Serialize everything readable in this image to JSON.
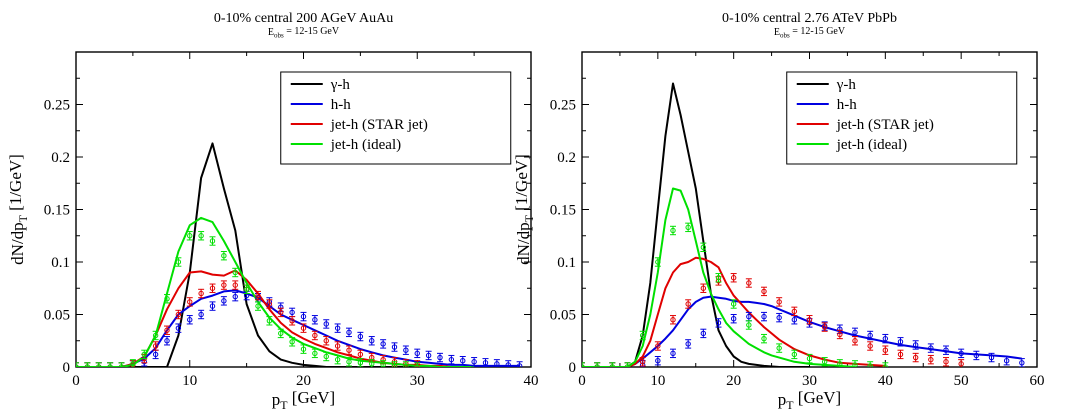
{
  "chart_data": [
    {
      "type": "line",
      "title": "0-10% central 200 AGeV AuAu",
      "subtitle": "E_obs = 12-15 GeV",
      "xlabel": "p_T [GeV]",
      "ylabel": "dN/dp_T [1/GeV]",
      "xlim": [
        0,
        40
      ],
      "ylim": [
        0,
        0.3
      ],
      "xticks": [
        0,
        10,
        20,
        30,
        40
      ],
      "yticks": [
        0,
        0.05,
        0.1,
        0.15,
        0.2,
        0.25
      ],
      "yticklabels": [
        "0",
        "0.05",
        "0.1",
        "0.15",
        "0.2",
        "0.25"
      ],
      "grid": false,
      "legend_position": "top-right",
      "series": [
        {
          "name": "γ-h",
          "color": "#000000",
          "style": "line",
          "x": [
            0,
            1,
            2,
            3,
            4,
            5,
            6,
            7,
            8,
            9,
            10,
            11,
            12,
            13,
            14,
            15,
            16,
            17,
            18,
            19,
            20,
            21,
            22,
            23,
            24,
            25,
            26,
            27,
            28,
            29,
            30
          ],
          "y": [
            0,
            0,
            0,
            0,
            0,
            0,
            0,
            0,
            0,
            0.03,
            0.09,
            0.18,
            0.213,
            0.17,
            0.13,
            0.06,
            0.03,
            0.015,
            0.007,
            0.004,
            0.002,
            0.001,
            0,
            0,
            0,
            0,
            0,
            0,
            0,
            0,
            0
          ]
        },
        {
          "name": "h-h",
          "color": "#0000e0",
          "style": "line",
          "x": [
            0,
            1,
            2,
            3,
            4,
            5,
            6,
            7,
            8,
            9,
            10,
            11,
            12,
            13,
            14,
            15,
            16,
            17,
            18,
            19,
            20,
            21,
            22,
            23,
            24,
            25,
            26,
            27,
            28,
            29,
            30,
            31,
            32,
            33,
            34,
            35,
            36,
            37,
            38,
            39
          ],
          "y": [
            0,
            0,
            0,
            0,
            0,
            0.003,
            0.008,
            0.018,
            0.035,
            0.05,
            0.058,
            0.065,
            0.068,
            0.072,
            0.073,
            0.07,
            0.066,
            0.058,
            0.05,
            0.045,
            0.04,
            0.035,
            0.03,
            0.025,
            0.021,
            0.017,
            0.014,
            0.011,
            0.009,
            0.007,
            0.005,
            0.004,
            0.003,
            0.002,
            0.002,
            0.001,
            0.001,
            0.001,
            0.001,
            0.001
          ]
        },
        {
          "name": "jet-h (STAR jet)",
          "color": "#e00000",
          "style": "line",
          "x": [
            0,
            1,
            2,
            3,
            4,
            5,
            6,
            7,
            8,
            9,
            10,
            11,
            12,
            13,
            14,
            15,
            16,
            17,
            18,
            19,
            20,
            21,
            22,
            23,
            24,
            25,
            26,
            27,
            28,
            29,
            30,
            31,
            32,
            33,
            34,
            35
          ],
          "y": [
            0,
            0,
            0,
            0,
            0,
            0.003,
            0.01,
            0.03,
            0.055,
            0.075,
            0.09,
            0.091,
            0.088,
            0.087,
            0.092,
            0.083,
            0.07,
            0.055,
            0.042,
            0.033,
            0.027,
            0.022,
            0.018,
            0.014,
            0.011,
            0.008,
            0.006,
            0.004,
            0.003,
            0.002,
            0.002,
            0.001,
            0.001,
            0,
            0,
            0
          ]
        },
        {
          "name": "jet-h (ideal)",
          "color": "#00e000",
          "style": "line",
          "x": [
            0,
            1,
            2,
            3,
            4,
            5,
            6,
            7,
            8,
            9,
            10,
            11,
            12,
            13,
            14,
            15,
            16,
            17,
            18,
            19,
            20,
            21,
            22,
            23,
            24,
            25,
            26,
            27,
            28,
            29,
            30,
            31,
            32,
            33,
            34,
            35
          ],
          "y": [
            0,
            0,
            0,
            0,
            0,
            0.002,
            0.01,
            0.03,
            0.07,
            0.11,
            0.135,
            0.142,
            0.138,
            0.12,
            0.1,
            0.08,
            0.062,
            0.047,
            0.036,
            0.028,
            0.022,
            0.018,
            0.014,
            0.011,
            0.008,
            0.006,
            0.005,
            0.004,
            0.003,
            0.002,
            0.001,
            0.001,
            0,
            0,
            0,
            0
          ]
        },
        {
          "name": "h-h data",
          "color": "#0000e0",
          "style": "errorbar",
          "x": [
            0,
            1,
            2,
            3,
            4,
            5,
            6,
            7,
            8,
            9,
            10,
            11,
            12,
            13,
            14,
            15,
            16,
            17,
            18,
            19,
            20,
            21,
            22,
            23,
            24,
            25,
            26,
            27,
            28,
            29,
            30,
            31,
            32,
            33,
            34,
            35,
            36,
            37,
            38,
            39
          ],
          "y": [
            0,
            0,
            0,
            0,
            0,
            0.002,
            0.005,
            0.012,
            0.025,
            0.037,
            0.045,
            0.05,
            0.058,
            0.063,
            0.067,
            0.068,
            0.066,
            0.062,
            0.057,
            0.052,
            0.048,
            0.045,
            0.041,
            0.037,
            0.033,
            0.029,
            0.025,
            0.022,
            0.019,
            0.016,
            0.013,
            0.011,
            0.009,
            0.007,
            0.006,
            0.005,
            0.004,
            0.003,
            0.002,
            0.001
          ],
          "err": 0.004
        },
        {
          "name": "jet-h (STAR jet) data",
          "color": "#e00000",
          "style": "errorbar",
          "x": [
            0,
            1,
            2,
            3,
            4,
            5,
            6,
            7,
            8,
            9,
            10,
            11,
            12,
            13,
            14,
            15,
            16,
            17,
            18,
            19,
            20,
            21,
            22,
            23,
            24,
            25,
            26,
            27,
            28,
            29,
            30
          ],
          "y": [
            0,
            0,
            0,
            0,
            0,
            0.002,
            0.008,
            0.02,
            0.035,
            0.05,
            0.062,
            0.07,
            0.075,
            0.078,
            0.078,
            0.074,
            0.068,
            0.06,
            0.052,
            0.044,
            0.037,
            0.03,
            0.025,
            0.02,
            0.016,
            0.012,
            0.009,
            0.007,
            0.005,
            0.003,
            0.002
          ],
          "err": 0.004
        },
        {
          "name": "jet-h (ideal) data",
          "color": "#00e000",
          "style": "errorbar",
          "x": [
            0,
            1,
            2,
            3,
            4,
            5,
            6,
            7,
            8,
            9,
            10,
            11,
            12,
            13,
            14,
            15,
            16,
            17,
            18,
            19,
            20,
            21,
            22,
            23,
            24,
            25,
            26,
            27,
            28,
            29,
            30
          ],
          "y": [
            0,
            0,
            0,
            0,
            0,
            0.003,
            0.012,
            0.03,
            0.065,
            0.1,
            0.125,
            0.125,
            0.12,
            0.106,
            0.09,
            0.074,
            0.058,
            0.044,
            0.032,
            0.024,
            0.017,
            0.013,
            0.01,
            0.007,
            0.005,
            0.004,
            0.003,
            0.002,
            0.001,
            0.001,
            0
          ],
          "err": 0.004
        }
      ]
    },
    {
      "type": "line",
      "title": "0-10% central 2.76 ATeV PbPb",
      "subtitle": "E_obs = 12-15 GeV",
      "xlabel": "p_T [GeV]",
      "ylabel": "dN/dp_T [1/GeV]",
      "xlim": [
        0,
        60
      ],
      "ylim": [
        0,
        0.3
      ],
      "xticks": [
        0,
        10,
        20,
        30,
        40,
        50,
        60
      ],
      "yticks": [
        0,
        0.05,
        0.1,
        0.15,
        0.2,
        0.25
      ],
      "yticklabels": [
        "0",
        "0.05",
        "0.1",
        "0.15",
        "0.2",
        "0.25"
      ],
      "grid": false,
      "legend_position": "top-right",
      "series": [
        {
          "name": "γ-h",
          "color": "#000000",
          "style": "line",
          "x": [
            0,
            2,
            4,
            6,
            7,
            8,
            9,
            10,
            11,
            12,
            13,
            14,
            15,
            16,
            17,
            18,
            19,
            20,
            21,
            22,
            23,
            24,
            26,
            28,
            30
          ],
          "y": [
            0,
            0,
            0,
            0,
            0.005,
            0.03,
            0.08,
            0.15,
            0.22,
            0.27,
            0.24,
            0.205,
            0.17,
            0.12,
            0.07,
            0.035,
            0.02,
            0.01,
            0.005,
            0.003,
            0.002,
            0.001,
            0,
            0,
            0
          ]
        },
        {
          "name": "h-h",
          "color": "#0000e0",
          "style": "line",
          "x": [
            0,
            2,
            4,
            6,
            7,
            8,
            9,
            10,
            11,
            12,
            13,
            14,
            15,
            16,
            17,
            18,
            19,
            20,
            21,
            22,
            23,
            24,
            25,
            26,
            28,
            30,
            32,
            34,
            36,
            38,
            40,
            42,
            44,
            46,
            48,
            50,
            52,
            54,
            56,
            58
          ],
          "y": [
            0,
            0,
            0,
            0,
            0.003,
            0.008,
            0.014,
            0.02,
            0.027,
            0.035,
            0.045,
            0.055,
            0.062,
            0.066,
            0.067,
            0.066,
            0.065,
            0.063,
            0.062,
            0.062,
            0.061,
            0.06,
            0.058,
            0.055,
            0.049,
            0.043,
            0.038,
            0.034,
            0.03,
            0.027,
            0.024,
            0.021,
            0.019,
            0.017,
            0.015,
            0.013,
            0.012,
            0.011,
            0.01,
            0.008
          ]
        },
        {
          "name": "jet-h (STAR jet)",
          "color": "#e00000",
          "style": "line",
          "x": [
            0,
            2,
            4,
            6,
            7,
            8,
            9,
            10,
            11,
            12,
            13,
            14,
            15,
            16,
            17,
            18,
            19,
            20,
            21,
            22,
            23,
            24,
            25,
            26,
            28,
            30,
            32,
            34,
            36,
            38,
            40
          ],
          "y": [
            0,
            0,
            0,
            0,
            0.003,
            0.01,
            0.025,
            0.05,
            0.075,
            0.09,
            0.098,
            0.1,
            0.104,
            0.103,
            0.1,
            0.095,
            0.08,
            0.068,
            0.06,
            0.052,
            0.045,
            0.038,
            0.032,
            0.026,
            0.017,
            0.011,
            0.007,
            0.004,
            0.003,
            0.002,
            0.001
          ]
        },
        {
          "name": "jet-h (ideal)",
          "color": "#00e000",
          "style": "line",
          "x": [
            0,
            2,
            4,
            6,
            7,
            8,
            9,
            10,
            11,
            12,
            13,
            14,
            15,
            16,
            17,
            18,
            19,
            20,
            21,
            22,
            23,
            24,
            25,
            26,
            28,
            30,
            32,
            34,
            36
          ],
          "y": [
            0,
            0,
            0,
            0,
            0.005,
            0.02,
            0.05,
            0.09,
            0.14,
            0.17,
            0.168,
            0.15,
            0.12,
            0.09,
            0.07,
            0.055,
            0.042,
            0.034,
            0.028,
            0.022,
            0.018,
            0.014,
            0.011,
            0.009,
            0.005,
            0.003,
            0.002,
            0.001,
            0
          ]
        },
        {
          "name": "h-h data",
          "color": "#0000e0",
          "style": "errorbar",
          "x": [
            0,
            2,
            4,
            6,
            8,
            10,
            12,
            14,
            16,
            18,
            20,
            22,
            24,
            26,
            28,
            30,
            32,
            34,
            36,
            38,
            40,
            42,
            44,
            46,
            48,
            50,
            52,
            54,
            56,
            58
          ],
          "y": [
            0,
            0,
            0,
            0,
            0.002,
            0.006,
            0.013,
            0.022,
            0.032,
            0.042,
            0.046,
            0.048,
            0.048,
            0.047,
            0.045,
            0.042,
            0.039,
            0.036,
            0.033,
            0.03,
            0.027,
            0.024,
            0.021,
            0.018,
            0.016,
            0.013,
            0.011,
            0.009,
            0.006,
            0.004
          ],
          "err": 0.004
        },
        {
          "name": "jet-h (STAR jet) data",
          "color": "#e00000",
          "style": "errorbar",
          "x": [
            0,
            2,
            4,
            6,
            8,
            10,
            12,
            14,
            16,
            18,
            20,
            22,
            24,
            26,
            28,
            30,
            32,
            34,
            36,
            38,
            40,
            42,
            44,
            46,
            48,
            50
          ],
          "y": [
            0,
            0,
            0,
            0,
            0.005,
            0.02,
            0.045,
            0.06,
            0.075,
            0.082,
            0.085,
            0.08,
            0.072,
            0.062,
            0.053,
            0.045,
            0.038,
            0.031,
            0.025,
            0.02,
            0.016,
            0.012,
            0.009,
            0.007,
            0.005,
            0.003
          ],
          "err": 0.004
        },
        {
          "name": "jet-h (ideal) data",
          "color": "#00e000",
          "style": "errorbar",
          "x": [
            0,
            2,
            4,
            6,
            8,
            10,
            12,
            14,
            16,
            18,
            20,
            22,
            24,
            26,
            28,
            30,
            32,
            34,
            36,
            38,
            40
          ],
          "y": [
            0,
            0,
            0,
            0,
            0.03,
            0.1,
            0.13,
            0.133,
            0.114,
            0.085,
            0.06,
            0.04,
            0.027,
            0.018,
            0.012,
            0.008,
            0.005,
            0.003,
            0.002,
            0.001,
            0
          ],
          "err": 0.004
        }
      ]
    }
  ]
}
